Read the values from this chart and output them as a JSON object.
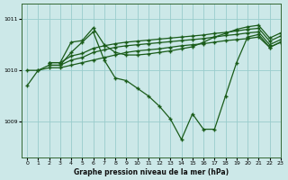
{
  "bg_color": "#cce8e8",
  "line_color": "#1a5c1a",
  "grid_color": "#99cccc",
  "xlabel": "Graphe pression niveau de la mer (hPa)",
  "xlim": [
    -0.5,
    23
  ],
  "ylim": [
    1008.3,
    1011.3
  ],
  "yticks": [
    1009,
    1010,
    1011
  ],
  "xticks": [
    0,
    1,
    2,
    3,
    4,
    5,
    6,
    7,
    8,
    9,
    10,
    11,
    12,
    13,
    14,
    15,
    16,
    17,
    18,
    19,
    20,
    21,
    22,
    23
  ],
  "series": [
    {
      "x": [
        0,
        1,
        2,
        3,
        4,
        5,
        6,
        7,
        8,
        9,
        10,
        11,
        12,
        13,
        14,
        15,
        16,
        17,
        18,
        19,
        20,
        21,
        22,
        23
      ],
      "y": [
        1009.7,
        1010.0,
        1010.1,
        1010.1,
        1010.35,
        1010.55,
        1010.75,
        1010.2,
        1009.85,
        1009.8,
        1009.65,
        1009.5,
        1009.3,
        1009.05,
        1008.65,
        1009.15,
        1008.85,
        1008.85,
        1009.5,
        1010.15,
        1010.65,
        1010.7,
        1010.45,
        1010.55
      ]
    },
    {
      "x": [
        0,
        1,
        2,
        3,
        4,
        5,
        6,
        7,
        8,
        9,
        10,
        11,
        12,
        13,
        14,
        15,
        16,
        17,
        18,
        19,
        20,
        21,
        22,
        23
      ],
      "y": [
        1010.0,
        1010.0,
        1010.05,
        1010.05,
        1010.1,
        1010.15,
        1010.2,
        1010.25,
        1010.3,
        1010.35,
        1010.38,
        1010.4,
        1010.42,
        1010.45,
        1010.48,
        1010.5,
        1010.52,
        1010.55,
        1010.58,
        1010.6,
        1010.62,
        1010.65,
        1010.45,
        1010.55
      ]
    },
    {
      "x": [
        2,
        3,
        4,
        5,
        6,
        7,
        8,
        9,
        10,
        11,
        12,
        13,
        14,
        15,
        16,
        17,
        18,
        19,
        20,
        21,
        22,
        23
      ],
      "y": [
        1010.1,
        1010.1,
        1010.2,
        1010.25,
        1010.35,
        1010.4,
        1010.45,
        1010.48,
        1010.5,
        1010.52,
        1010.54,
        1010.56,
        1010.58,
        1010.6,
        1010.62,
        1010.65,
        1010.68,
        1010.7,
        1010.73,
        1010.75,
        1010.5,
        1010.6
      ]
    },
    {
      "x": [
        2,
        3,
        4,
        5,
        6,
        7,
        8,
        9,
        10,
        11,
        12,
        13,
        14,
        15,
        16,
        17,
        18,
        19,
        20,
        21,
        22,
        23
      ],
      "y": [
        1010.15,
        1010.15,
        1010.28,
        1010.33,
        1010.43,
        1010.48,
        1010.52,
        1010.55,
        1010.57,
        1010.59,
        1010.61,
        1010.63,
        1010.65,
        1010.67,
        1010.69,
        1010.72,
        1010.74,
        1010.77,
        1010.8,
        1010.82,
        1010.57,
        1010.67
      ]
    },
    {
      "x": [
        2,
        3,
        4,
        5,
        6,
        7,
        8,
        9,
        10,
        11,
        12,
        13,
        14,
        15,
        16,
        17,
        18,
        19,
        20,
        21,
        22,
        23
      ],
      "y": [
        1010.15,
        1010.15,
        1010.55,
        1010.58,
        1010.83,
        1010.5,
        1010.35,
        1010.3,
        1010.3,
        1010.32,
        1010.35,
        1010.38,
        1010.42,
        1010.46,
        1010.55,
        1010.65,
        1010.72,
        1010.8,
        1010.85,
        1010.88,
        1010.63,
        1010.73
      ]
    }
  ]
}
